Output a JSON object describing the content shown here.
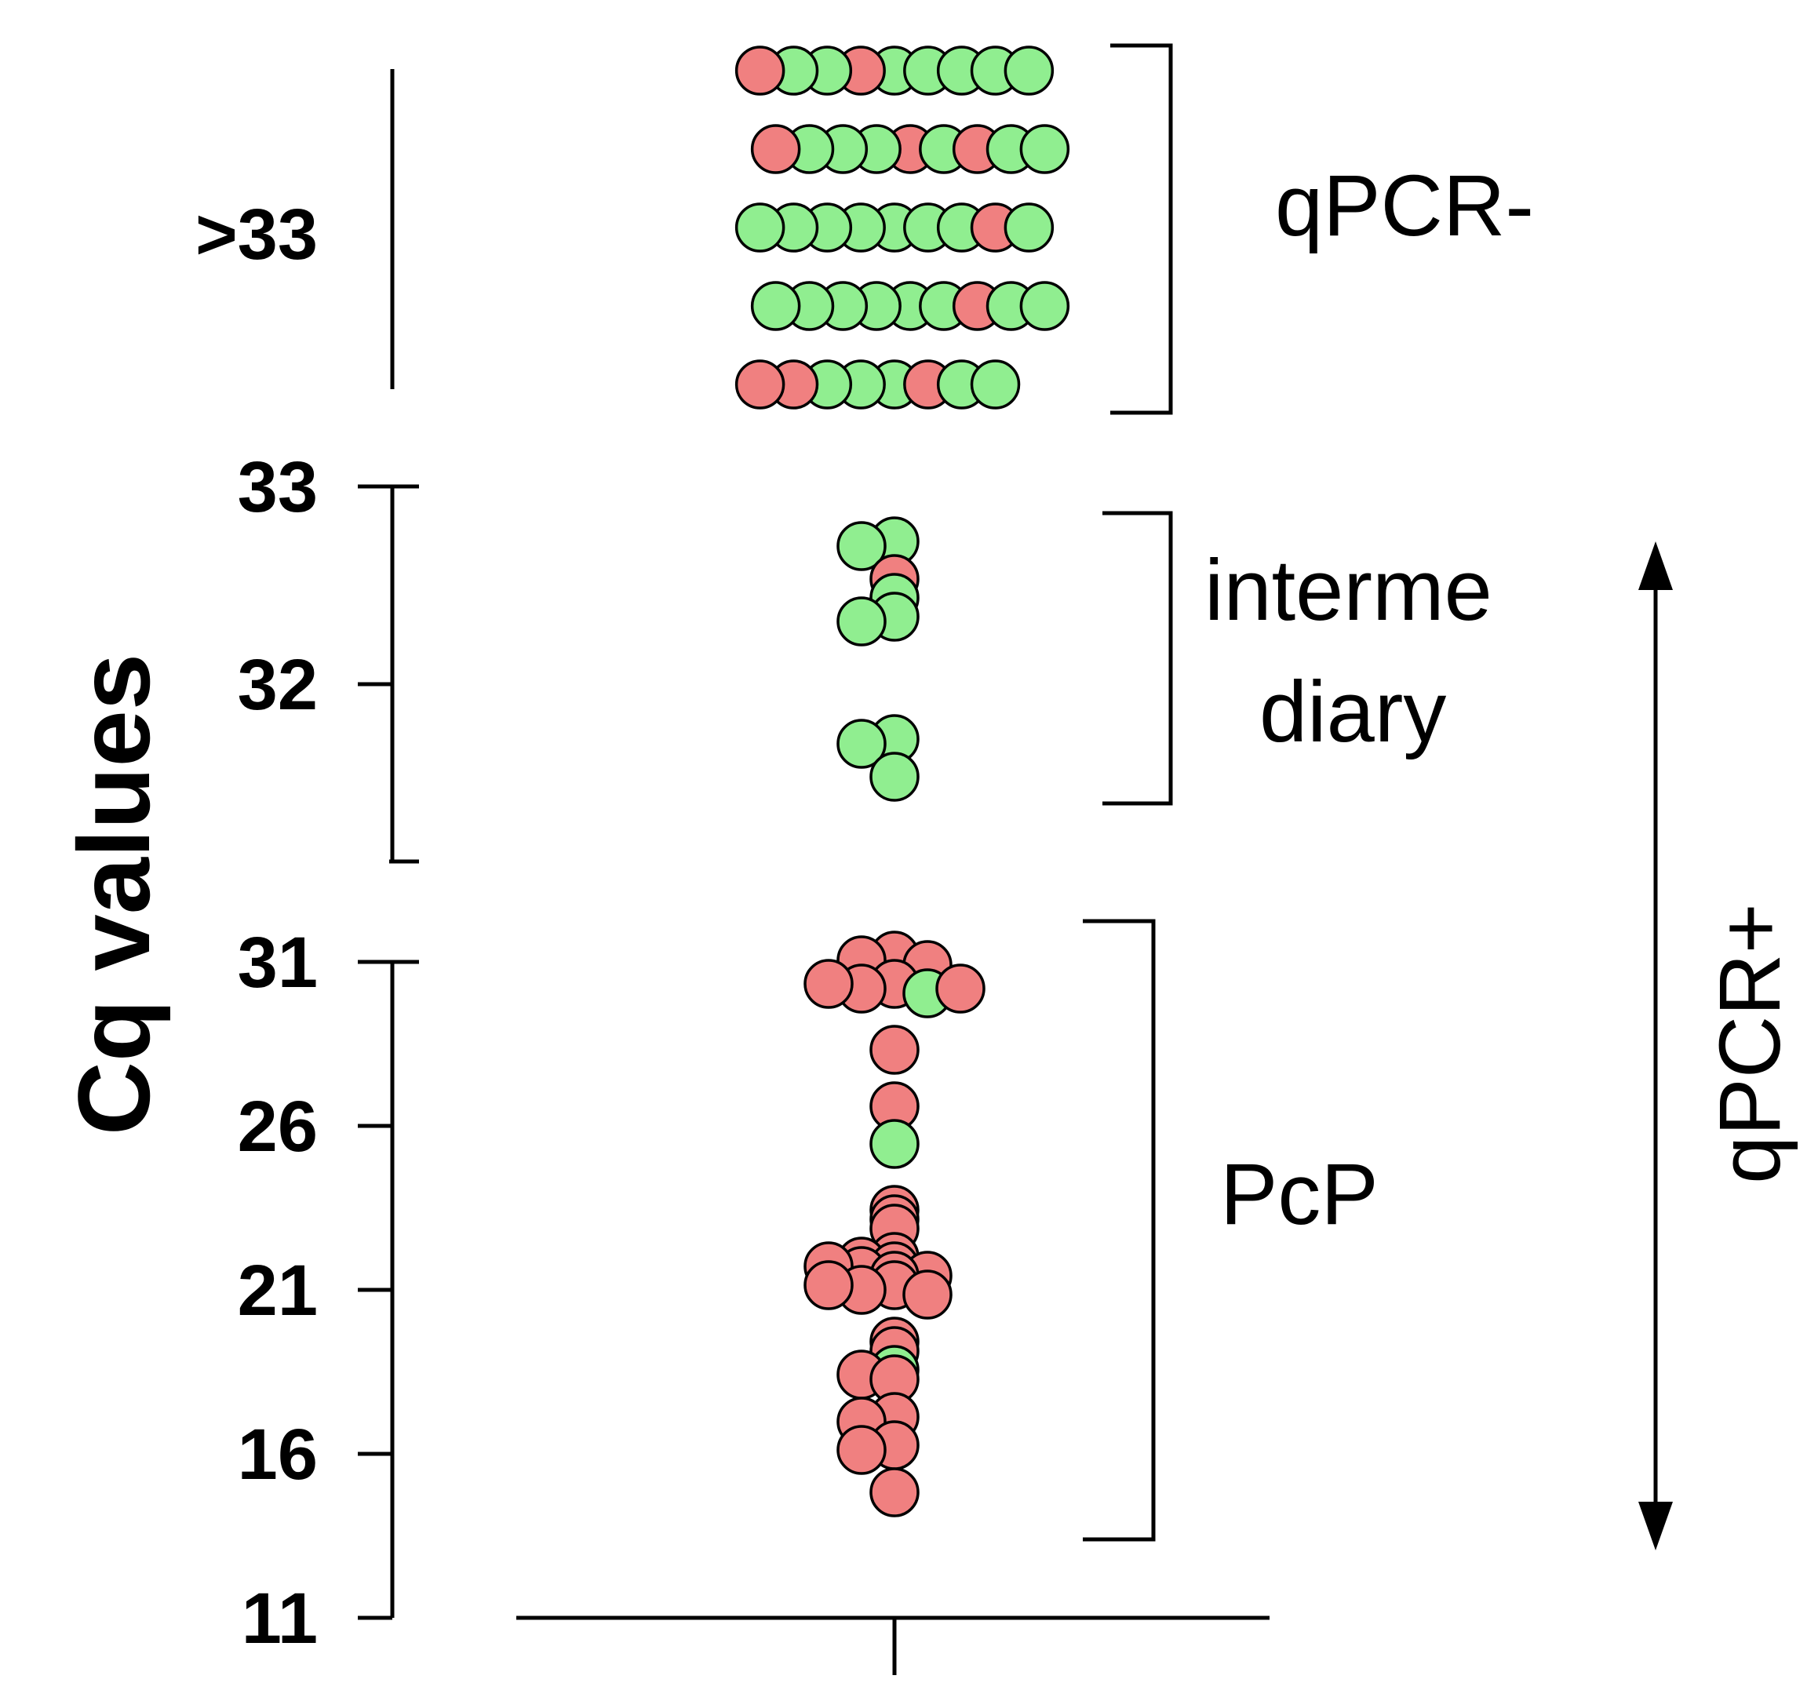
{
  "colors": {
    "positive": "#f08080",
    "negative": "#90ee90",
    "axis": "#000000"
  },
  "chart_data": {
    "type": "scatter",
    "title": "",
    "ylabel": "Cq values",
    "xlabel": "",
    "segments": [
      {
        "ticks": [
          ">33"
        ],
        "range": [
          33,
          40
        ]
      },
      {
        "ticks": [
          "33",
          "32"
        ],
        "range": [
          30.9,
          33
        ]
      },
      {
        "ticks": [
          "31",
          "26",
          "21",
          "16",
          "11"
        ],
        "range": [
          11,
          31
        ]
      }
    ],
    "group_labels": {
      "negative": "qPCR-",
      "intermediary_line1": "interme",
      "intermediary_line2": "diary",
      "pcp": "PcP",
      "positive": "qPCR+"
    },
    "points": [
      {
        "y": 32.7,
        "c": "negative"
      },
      {
        "y": 32.7,
        "c": "negative"
      },
      {
        "y": 32.5,
        "c": "positive"
      },
      {
        "y": 32.4,
        "c": "negative"
      },
      {
        "y": 32.3,
        "c": "negative"
      },
      {
        "y": 32.3,
        "c": "negative"
      },
      {
        "y": 31.7,
        "c": "negative"
      },
      {
        "y": 31.7,
        "c": "negative"
      },
      {
        "y": 31.5,
        "c": "negative"
      },
      {
        "y": 31.0,
        "c": "positive"
      },
      {
        "y": 31.0,
        "c": "positive"
      },
      {
        "y": 31.0,
        "c": "positive"
      },
      {
        "y": 30.3,
        "c": "positive"
      },
      {
        "y": 30.3,
        "c": "positive"
      },
      {
        "y": 30.3,
        "c": "negative"
      },
      {
        "y": 30.3,
        "c": "positive"
      },
      {
        "y": 30.3,
        "c": "positive"
      },
      {
        "y": 28.3,
        "c": "positive"
      },
      {
        "y": 26.4,
        "c": "positive"
      },
      {
        "y": 25.3,
        "c": "negative"
      },
      {
        "y": 23.2,
        "c": "positive"
      },
      {
        "y": 23.0,
        "c": "positive"
      },
      {
        "y": 22.8,
        "c": "positive"
      },
      {
        "y": 22.0,
        "c": "positive"
      },
      {
        "y": 21.8,
        "c": "positive"
      },
      {
        "y": 21.6,
        "c": "positive"
      },
      {
        "y": 21.6,
        "c": "positive"
      },
      {
        "y": 21.6,
        "c": "positive"
      },
      {
        "y": 21.6,
        "c": "positive"
      },
      {
        "y": 21.2,
        "c": "positive"
      },
      {
        "y": 21.0,
        "c": "positive"
      },
      {
        "y": 21.0,
        "c": "positive"
      },
      {
        "y": 21.0,
        "c": "positive"
      },
      {
        "y": 21.0,
        "c": "positive"
      },
      {
        "y": 19.4,
        "c": "positive"
      },
      {
        "y": 18.9,
        "c": "positive"
      },
      {
        "y": 18.5,
        "c": "negative"
      },
      {
        "y": 18.5,
        "c": "positive"
      },
      {
        "y": 18.0,
        "c": "positive"
      },
      {
        "y": 17.0,
        "c": "positive"
      },
      {
        "y": 16.9,
        "c": "positive"
      },
      {
        "y": 16.2,
        "c": "positive"
      },
      {
        "y": 16.2,
        "c": "positive"
      },
      {
        "y": 14.7,
        "c": "positive"
      },
      {
        "s": ">33",
        "c": "negative"
      },
      {
        "s": ">33",
        "c": "positive"
      },
      {
        "s": ">33",
        "c": "negative"
      },
      {
        "s": ">33",
        "c": "negative"
      },
      {
        "s": ">33",
        "c": "negative"
      },
      {
        "s": ">33",
        "c": "negative"
      },
      {
        "s": ">33",
        "c": "negative"
      },
      {
        "s": ">33",
        "c": "positive"
      },
      {
        "s": ">33",
        "c": "negative"
      },
      {
        "s": ">33",
        "c": "positive"
      },
      {
        "s": ">33",
        "c": "negative"
      },
      {
        "s": ">33",
        "c": "negative"
      },
      {
        "s": ">33",
        "c": "negative"
      },
      {
        "s": ">33",
        "c": "positive"
      },
      {
        "s": ">33",
        "c": "negative"
      },
      {
        "s": ">33",
        "c": "negative"
      },
      {
        "s": ">33",
        "c": "positive"
      },
      {
        "s": ">33",
        "c": "negative"
      },
      {
        "s": ">33",
        "c": "negative"
      },
      {
        "s": ">33",
        "c": "negative"
      },
      {
        "s": ">33",
        "c": "negative"
      },
      {
        "s": ">33",
        "c": "negative"
      },
      {
        "s": ">33",
        "c": "negative"
      },
      {
        "s": ">33",
        "c": "negative"
      },
      {
        "s": ">33",
        "c": "positive"
      },
      {
        "s": ">33",
        "c": "negative"
      },
      {
        "s": ">33",
        "c": "negative"
      },
      {
        "s": ">33",
        "c": "negative"
      },
      {
        "s": ">33",
        "c": "negative"
      },
      {
        "s": ">33",
        "c": "negative"
      },
      {
        "s": ">33",
        "c": "negative"
      },
      {
        "s": ">33",
        "c": "positive"
      },
      {
        "s": ">33",
        "c": "negative"
      },
      {
        "s": ">33",
        "c": "negative"
      },
      {
        "s": ">33",
        "c": "negative"
      },
      {
        "s": ">33",
        "c": "negative"
      },
      {
        "s": ">33",
        "c": "negative"
      },
      {
        "s": ">33",
        "c": "negative"
      },
      {
        "s": ">33",
        "c": "positive"
      },
      {
        "s": ">33",
        "c": "negative"
      },
      {
        "s": ">33",
        "c": "negative"
      },
      {
        "s": ">33",
        "c": "positive"
      },
      {
        "s": ">33",
        "c": "negative"
      },
      {
        "s": ">33",
        "c": "positive"
      }
    ]
  }
}
